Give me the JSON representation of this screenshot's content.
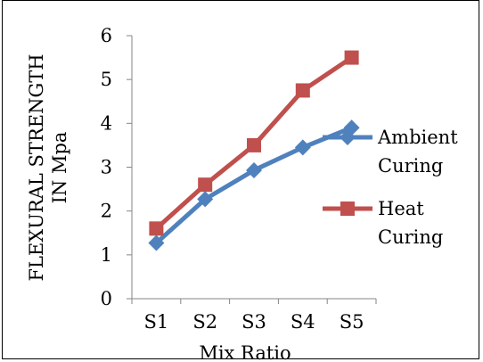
{
  "chart_data": {
    "type": "line",
    "title": "",
    "xlabel": "Mix Ratio",
    "ylabel_lines": [
      "FLEXURAL STRENGTH",
      "IN Mpa"
    ],
    "categories": [
      "S1",
      "S2",
      "S3",
      "S4",
      "S5"
    ],
    "ylim": [
      0,
      6
    ],
    "yticks": [
      0,
      1,
      2,
      3,
      4,
      5,
      6
    ],
    "grid": false,
    "legend_position": "right",
    "series": [
      {
        "name_lines": [
          "Ambient",
          "Curing"
        ],
        "color": "#4f81bd",
        "marker": "diamond",
        "values": [
          1.27,
          2.27,
          2.93,
          3.45,
          3.9
        ]
      },
      {
        "name_lines": [
          "Heat",
          "Curing"
        ],
        "color": "#c0504d",
        "marker": "square",
        "values": [
          1.6,
          2.6,
          3.5,
          4.75,
          5.5
        ]
      }
    ]
  }
}
